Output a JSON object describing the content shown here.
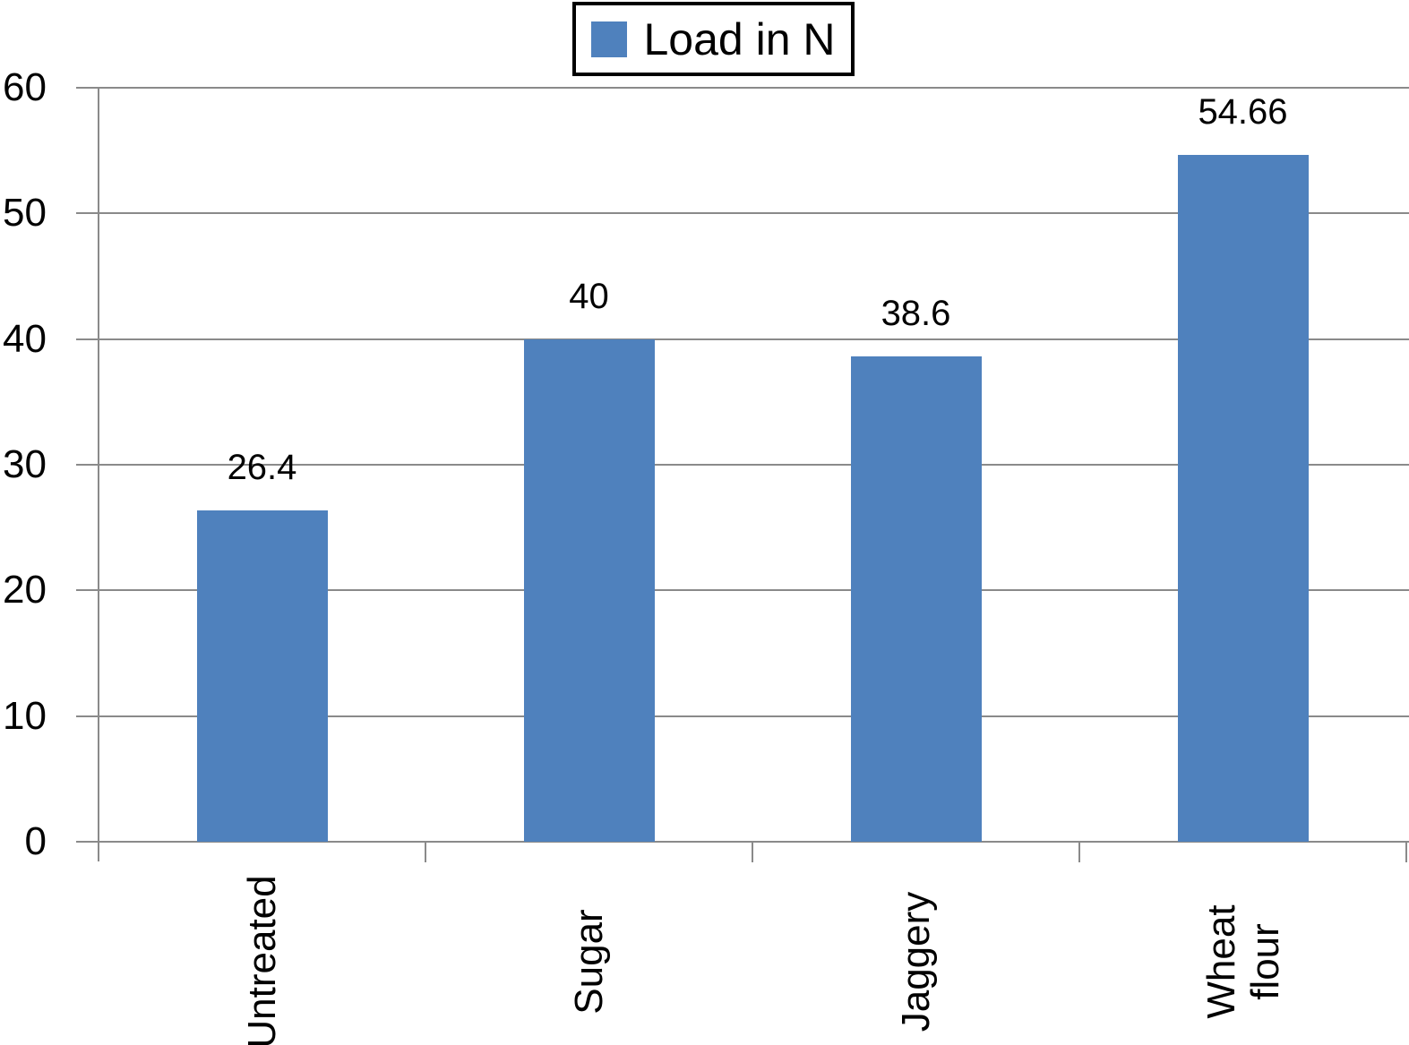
{
  "chart_data": {
    "type": "bar",
    "title": "",
    "legend": [
      "Load in N"
    ],
    "legend_position": "top-center",
    "categories": [
      "Untreated",
      "Sugar",
      "Jaggery",
      "Wheat flour"
    ],
    "category_display": [
      [
        "Untreated"
      ],
      [
        "Sugar"
      ],
      [
        "Jaggery"
      ],
      [
        "Wheat",
        "flour"
      ]
    ],
    "values": [
      26.4,
      40,
      38.6,
      54.66
    ],
    "value_labels": [
      "26.4",
      "40",
      "38.6",
      "54.66"
    ],
    "xlabel": "",
    "ylabel": "",
    "ylim": [
      0,
      60
    ],
    "yticks": [
      0,
      10,
      20,
      30,
      40,
      50,
      60
    ],
    "grid": "horizontal-major",
    "x_tick_labels_rotation_deg": 90,
    "colors": {
      "bar": "#4F81BD",
      "gridline": "#8a8a8a",
      "axis": "#8a8a8a",
      "text": "#000000",
      "background": "#ffffff",
      "legend_border": "#000000"
    }
  }
}
